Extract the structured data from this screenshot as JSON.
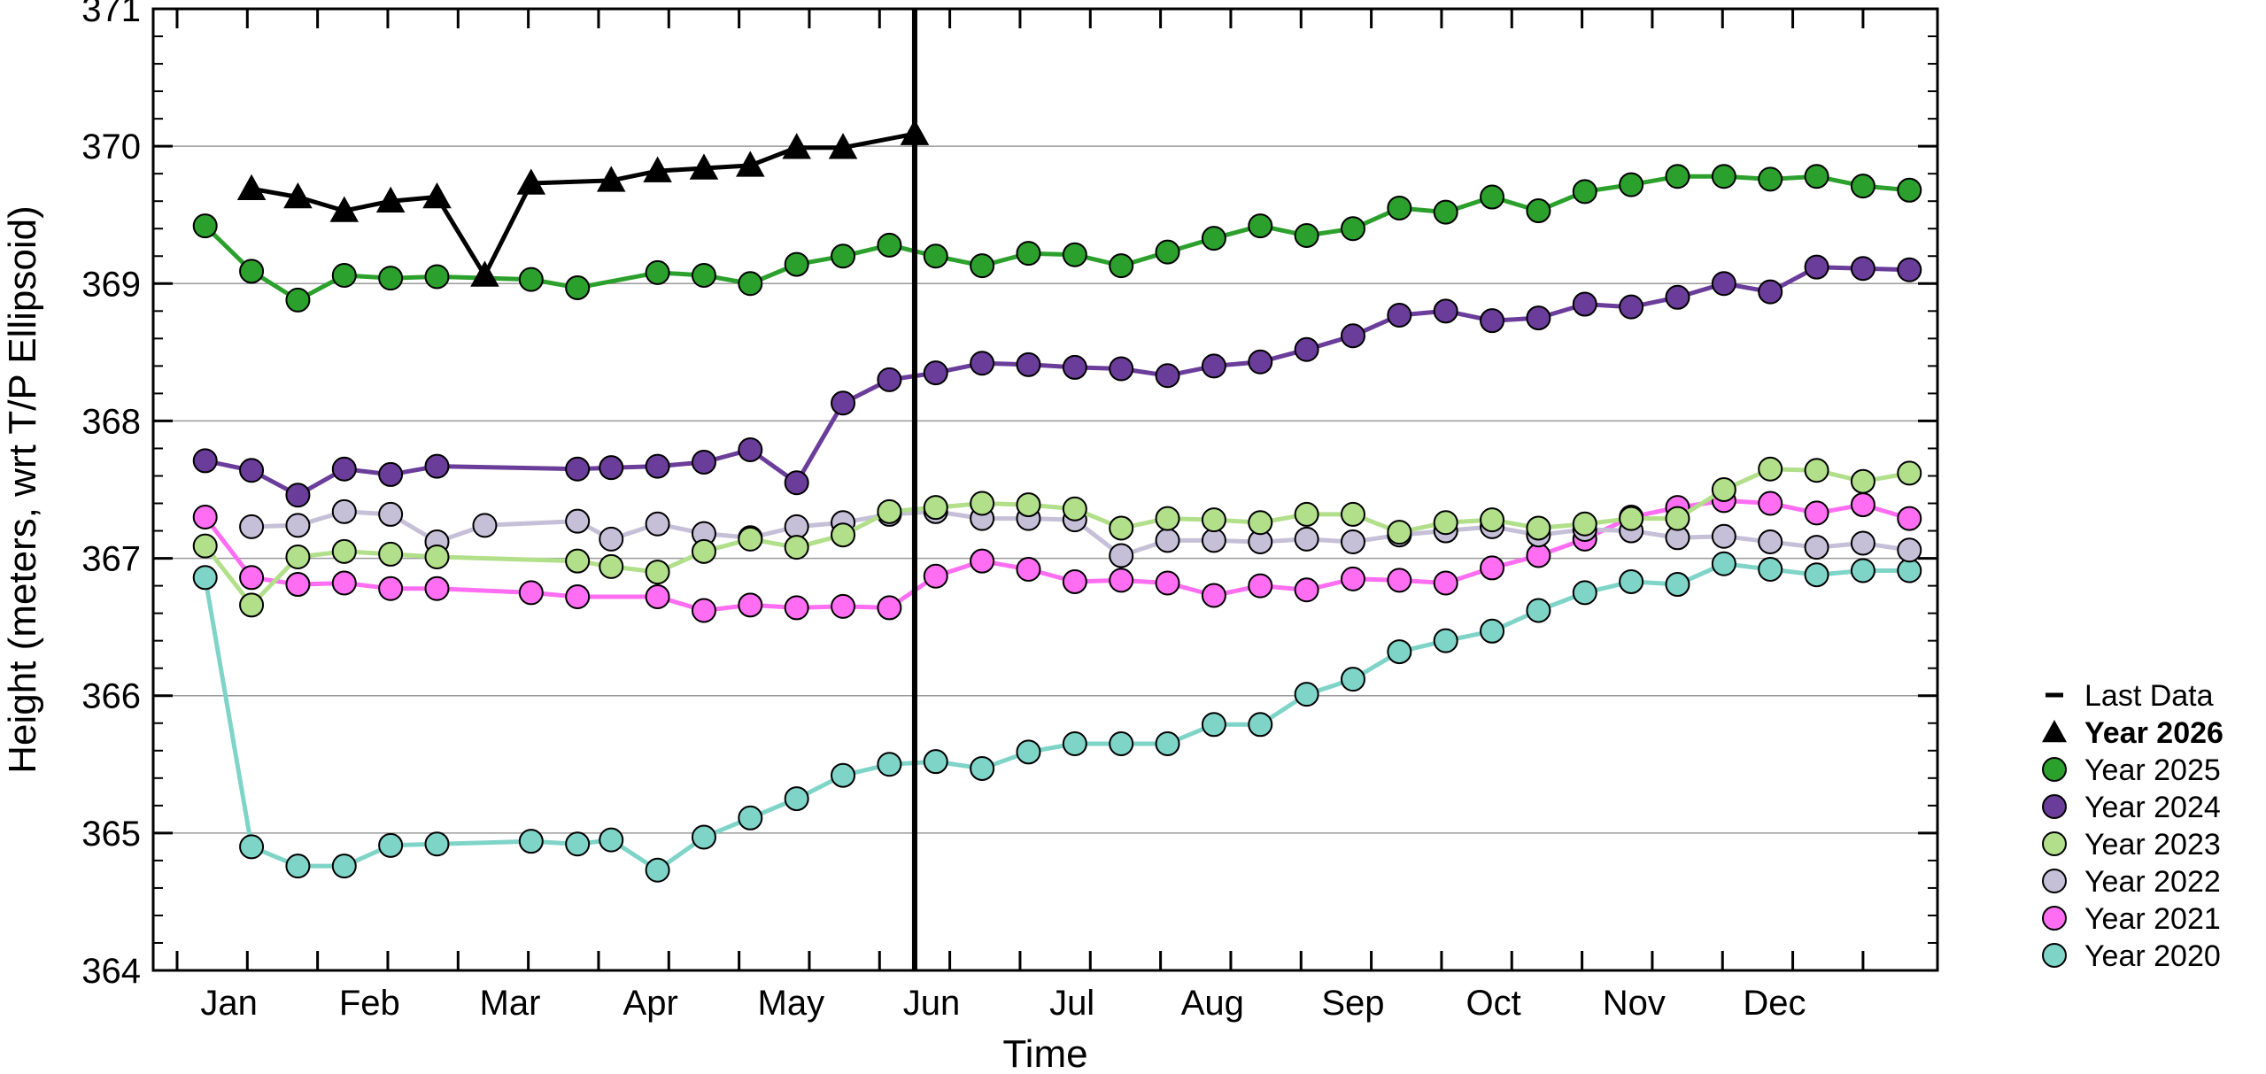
{
  "chart_data": {
    "type": "line",
    "xlabel": "Time",
    "ylabel": "Height (meters, wrt T/P Ellipsoid)",
    "ylim": [
      364,
      371
    ],
    "yticks": [
      364,
      365,
      366,
      367,
      368,
      369,
      370,
      371
    ],
    "xlim": [
      0,
      12
    ],
    "month_labels": [
      "Jan",
      "Feb",
      "Mar",
      "Apr",
      "May",
      "Jun",
      "Jul",
      "Aug",
      "Sep",
      "Oct",
      "Nov",
      "Dec"
    ],
    "grid": "horizontal",
    "legend_placement": "right",
    "last_data": {
      "label": "Last Data",
      "x": 4.92
    },
    "series": [
      {
        "name": "Year 2026",
        "marker": "triangle",
        "color": "#000000",
        "bold": true,
        "x": [
          0.2,
          0.53,
          0.86,
          1.19,
          1.52,
          1.86,
          2.19,
          2.76,
          3.09,
          3.42,
          3.75,
          4.08,
          4.41,
          4.92
        ],
        "y": [
          369.69,
          369.63,
          369.53,
          369.6,
          369.63,
          369.06,
          369.73,
          369.75,
          369.82,
          369.84,
          369.86,
          369.99,
          369.99,
          370.09
        ]
      },
      {
        "name": "Year 2025",
        "marker": "circle",
        "color": "#2ca02c",
        "x": [
          -0.13,
          0.2,
          0.53,
          0.86,
          1.19,
          1.52,
          2.19,
          2.52,
          3.09,
          3.42,
          3.75,
          4.08,
          4.41,
          4.74,
          5.07,
          5.4,
          5.73,
          6.06,
          6.39,
          6.72,
          7.05,
          7.38,
          7.71,
          8.04,
          8.37,
          8.7,
          9.03,
          9.36,
          9.69,
          10.02,
          10.35,
          10.68,
          11.01,
          11.34,
          11.67,
          12.0
        ],
        "y": [
          369.42,
          369.09,
          368.88,
          369.06,
          369.04,
          369.05,
          369.03,
          368.97,
          369.08,
          369.06,
          369.0,
          369.14,
          369.2,
          369.28,
          369.2,
          369.13,
          369.22,
          369.21,
          369.13,
          369.23,
          369.33,
          369.42,
          369.35,
          369.4,
          369.55,
          369.52,
          369.63,
          369.53,
          369.67,
          369.72,
          369.78,
          369.78,
          369.76,
          369.78,
          369.71,
          369.68
        ]
      },
      {
        "name": "Year 2024",
        "marker": "circle",
        "color": "#6a3d9a",
        "x": [
          -0.13,
          0.2,
          0.53,
          0.86,
          1.19,
          1.52,
          2.52,
          2.76,
          3.09,
          3.42,
          3.75,
          4.08,
          4.41,
          4.74,
          5.07,
          5.4,
          5.73,
          6.06,
          6.39,
          6.72,
          7.05,
          7.38,
          7.71,
          8.04,
          8.37,
          8.7,
          9.03,
          9.36,
          9.69,
          10.02,
          10.35,
          10.68,
          11.01,
          11.34,
          11.67,
          12.0
        ],
        "y": [
          367.71,
          367.64,
          367.46,
          367.65,
          367.61,
          367.67,
          367.65,
          367.66,
          367.67,
          367.7,
          367.79,
          367.55,
          368.13,
          368.3,
          368.35,
          368.42,
          368.41,
          368.39,
          368.38,
          368.33,
          368.4,
          368.43,
          368.52,
          368.62,
          368.77,
          368.8,
          368.73,
          368.75,
          368.85,
          368.83,
          368.9,
          369.0,
          368.94,
          369.12,
          369.11,
          369.1
        ]
      },
      {
        "name": "Year 2023",
        "marker": "circle",
        "color": "#b2df8a",
        "x": [
          -0.13,
          0.2,
          0.53,
          0.86,
          1.19,
          1.52,
          2.52,
          2.76,
          3.09,
          3.42,
          3.75,
          4.08,
          4.41,
          4.74,
          5.07,
          5.4,
          5.73,
          6.06,
          6.39,
          6.72,
          7.05,
          7.38,
          7.71,
          8.04,
          8.37,
          8.7,
          9.03,
          9.36,
          9.69,
          10.02,
          10.35,
          10.68,
          11.01,
          11.34,
          11.67,
          12.0
        ],
        "y": [
          367.09,
          366.66,
          367.01,
          367.05,
          367.03,
          367.01,
          366.98,
          366.94,
          366.9,
          367.05,
          367.14,
          367.08,
          367.17,
          367.34,
          367.37,
          367.4,
          367.39,
          367.36,
          367.22,
          367.29,
          367.28,
          367.26,
          367.32,
          367.32,
          367.19,
          367.26,
          367.28,
          367.22,
          367.25,
          367.29,
          367.29,
          367.5,
          367.65,
          367.64,
          367.56,
          367.62
        ]
      },
      {
        "name": "Year 2022",
        "marker": "circle",
        "color": "#c5c0d8",
        "x": [
          0.2,
          0.53,
          0.86,
          1.19,
          1.52,
          1.86,
          2.52,
          2.76,
          3.09,
          3.42,
          3.75,
          4.08,
          4.41,
          4.74,
          5.07,
          5.4,
          5.73,
          6.06,
          6.39,
          6.72,
          7.05,
          7.38,
          7.71,
          8.04,
          8.37,
          8.7,
          9.03,
          9.36,
          9.69,
          10.02,
          10.35,
          10.68,
          11.01,
          11.34,
          11.67,
          12.0
        ],
        "y": [
          367.23,
          367.24,
          367.34,
          367.32,
          367.12,
          367.24,
          367.27,
          367.14,
          367.25,
          367.18,
          367.15,
          367.23,
          367.26,
          367.32,
          367.34,
          367.29,
          367.29,
          367.28,
          367.02,
          367.13,
          367.13,
          367.12,
          367.14,
          367.12,
          367.17,
          367.2,
          367.23,
          367.17,
          367.21,
          367.2,
          367.15,
          367.16,
          367.12,
          367.08,
          367.11,
          367.06
        ]
      },
      {
        "name": "Year 2021",
        "marker": "circle",
        "color": "#ff6ef2",
        "x": [
          -0.13,
          0.2,
          0.53,
          0.86,
          1.19,
          1.52,
          2.19,
          2.52,
          3.09,
          3.42,
          3.75,
          4.08,
          4.41,
          4.74,
          5.07,
          5.4,
          5.73,
          6.06,
          6.39,
          6.72,
          7.05,
          7.38,
          7.71,
          8.04,
          8.37,
          8.7,
          9.03,
          9.36,
          9.69,
          10.02,
          10.35,
          10.68,
          11.01,
          11.34,
          11.67,
          12.0
        ],
        "y": [
          367.3,
          366.86,
          366.81,
          366.82,
          366.78,
          366.78,
          366.75,
          366.72,
          366.72,
          366.62,
          366.66,
          366.64,
          366.65,
          366.64,
          366.87,
          366.98,
          366.92,
          366.83,
          366.84,
          366.82,
          366.73,
          366.8,
          366.77,
          366.85,
          366.84,
          366.82,
          366.93,
          367.02,
          367.14,
          367.3,
          367.37,
          367.42,
          367.4,
          367.33,
          367.39,
          367.29
        ]
      },
      {
        "name": "Year 2020",
        "marker": "circle",
        "color": "#7fd4c8",
        "x": [
          -0.13,
          0.2,
          0.53,
          0.86,
          1.19,
          1.52,
          2.19,
          2.52,
          2.76,
          3.09,
          3.42,
          3.75,
          4.08,
          4.41,
          4.74,
          5.07,
          5.4,
          5.73,
          6.06,
          6.39,
          6.72,
          7.05,
          7.38,
          7.71,
          8.04,
          8.37,
          8.7,
          9.03,
          9.36,
          9.69,
          10.02,
          10.35,
          10.68,
          11.01,
          11.34,
          11.67,
          12.0
        ],
        "y": [
          366.86,
          364.9,
          364.76,
          364.76,
          364.91,
          364.92,
          364.94,
          364.92,
          364.95,
          364.73,
          364.97,
          365.11,
          365.25,
          365.42,
          365.5,
          365.52,
          365.47,
          365.59,
          365.65,
          365.65,
          365.65,
          365.79,
          365.79,
          366.01,
          366.12,
          366.32,
          366.4,
          366.47,
          366.62,
          366.75,
          366.83,
          366.81,
          366.96,
          366.92,
          366.88,
          366.91,
          366.91
        ]
      }
    ]
  }
}
